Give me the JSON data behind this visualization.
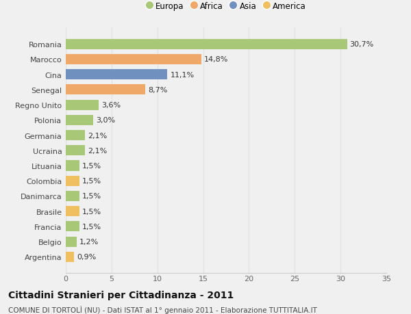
{
  "categories": [
    "Argentina",
    "Belgio",
    "Francia",
    "Brasile",
    "Danimarca",
    "Colombia",
    "Lituania",
    "Ucraina",
    "Germania",
    "Polonia",
    "Regno Unito",
    "Senegal",
    "Cina",
    "Marocco",
    "Romania"
  ],
  "values": [
    0.9,
    1.2,
    1.5,
    1.5,
    1.5,
    1.5,
    1.5,
    2.1,
    2.1,
    3.0,
    3.6,
    8.7,
    11.1,
    14.8,
    30.7
  ],
  "labels": [
    "0,9%",
    "1,2%",
    "1,5%",
    "1,5%",
    "1,5%",
    "1,5%",
    "1,5%",
    "2,1%",
    "2,1%",
    "3,0%",
    "3,6%",
    "8,7%",
    "11,1%",
    "14,8%",
    "30,7%"
  ],
  "colors": [
    "#f0c060",
    "#a8c878",
    "#a8c878",
    "#f0c060",
    "#a8c878",
    "#f0c060",
    "#a8c878",
    "#a8c878",
    "#a8c878",
    "#a8c878",
    "#a8c878",
    "#f0a868",
    "#7090c0",
    "#f0a868",
    "#a8c878"
  ],
  "continent_colors": {
    "Europa": "#a8c878",
    "Africa": "#f0a868",
    "Asia": "#7090c0",
    "America": "#f0c060"
  },
  "title": "Cittadini Stranieri per Cittadinanza - 2011",
  "subtitle": "COMUNE DI TORTOLÌ (NU) - Dati ISTAT al 1° gennaio 2011 - Elaborazione TUTTITALIA.IT",
  "xlim": [
    0,
    35
  ],
  "xticks": [
    0,
    5,
    10,
    15,
    20,
    25,
    30,
    35
  ],
  "background_color": "#f0f0f0",
  "grid_color": "#e0e0e0",
  "bar_height": 0.68,
  "title_fontsize": 10,
  "subtitle_fontsize": 7.5,
  "label_fontsize": 8,
  "tick_fontsize": 8,
  "legend_fontsize": 8.5
}
